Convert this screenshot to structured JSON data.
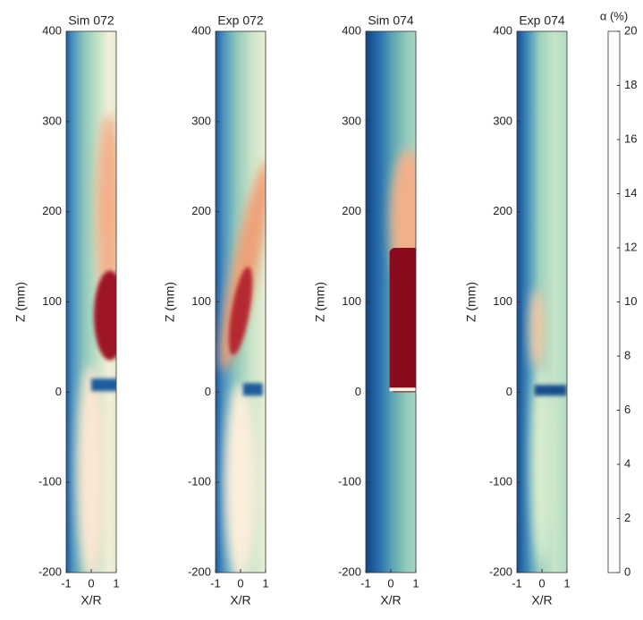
{
  "chart_data": [
    {
      "type": "contour",
      "title": "Sim 072",
      "xlabel": "X/R",
      "ylabel": "Z (mm)",
      "xlim": [
        -1,
        1
      ],
      "xticks": [
        -1,
        0,
        1
      ],
      "ylim": [
        -200,
        400
      ],
      "yticks": [
        -200,
        -100,
        0,
        100,
        200,
        300,
        400
      ]
    },
    {
      "type": "contour",
      "title": "Exp 072",
      "xlabel": "X/R",
      "ylabel": "Z (mm)",
      "xlim": [
        -1,
        1
      ],
      "xticks": [
        -1,
        0,
        1
      ],
      "ylim": [
        -200,
        400
      ],
      "yticks": [
        -200,
        -100,
        0,
        100,
        200,
        300,
        400
      ]
    },
    {
      "type": "contour",
      "title": "Sim 074",
      "xlabel": "X/R",
      "ylabel": "Z (mm)",
      "xlim": [
        -1,
        1
      ],
      "xticks": [
        -1,
        0,
        1
      ],
      "ylim": [
        -200,
        400
      ],
      "yticks": [
        -200,
        -100,
        0,
        100,
        200,
        300,
        400
      ]
    },
    {
      "type": "contour",
      "title": "Exp 074",
      "xlabel": "X/R",
      "ylabel": "Z (mm)",
      "xlim": [
        -1,
        1
      ],
      "xticks": [
        -1,
        0,
        1
      ],
      "ylim": [
        -200,
        400
      ],
      "yticks": [
        -200,
        -100,
        0,
        100,
        200,
        300,
        400
      ]
    }
  ],
  "colorbar": {
    "label": "α (%)",
    "lim": [
      0,
      20
    ],
    "ticks": [
      0,
      2,
      4,
      6,
      8,
      10,
      12,
      14,
      16,
      18,
      20
    ],
    "colors": [
      "#0a3a75",
      "#2364a8",
      "#3d87bb",
      "#5fa8b4",
      "#8fc9bb",
      "#c6e4c8",
      "#fbf6e2",
      "#fbd8bd",
      "#f0a276",
      "#d65a42",
      "#ae1a2a",
      "#6e0519"
    ]
  }
}
